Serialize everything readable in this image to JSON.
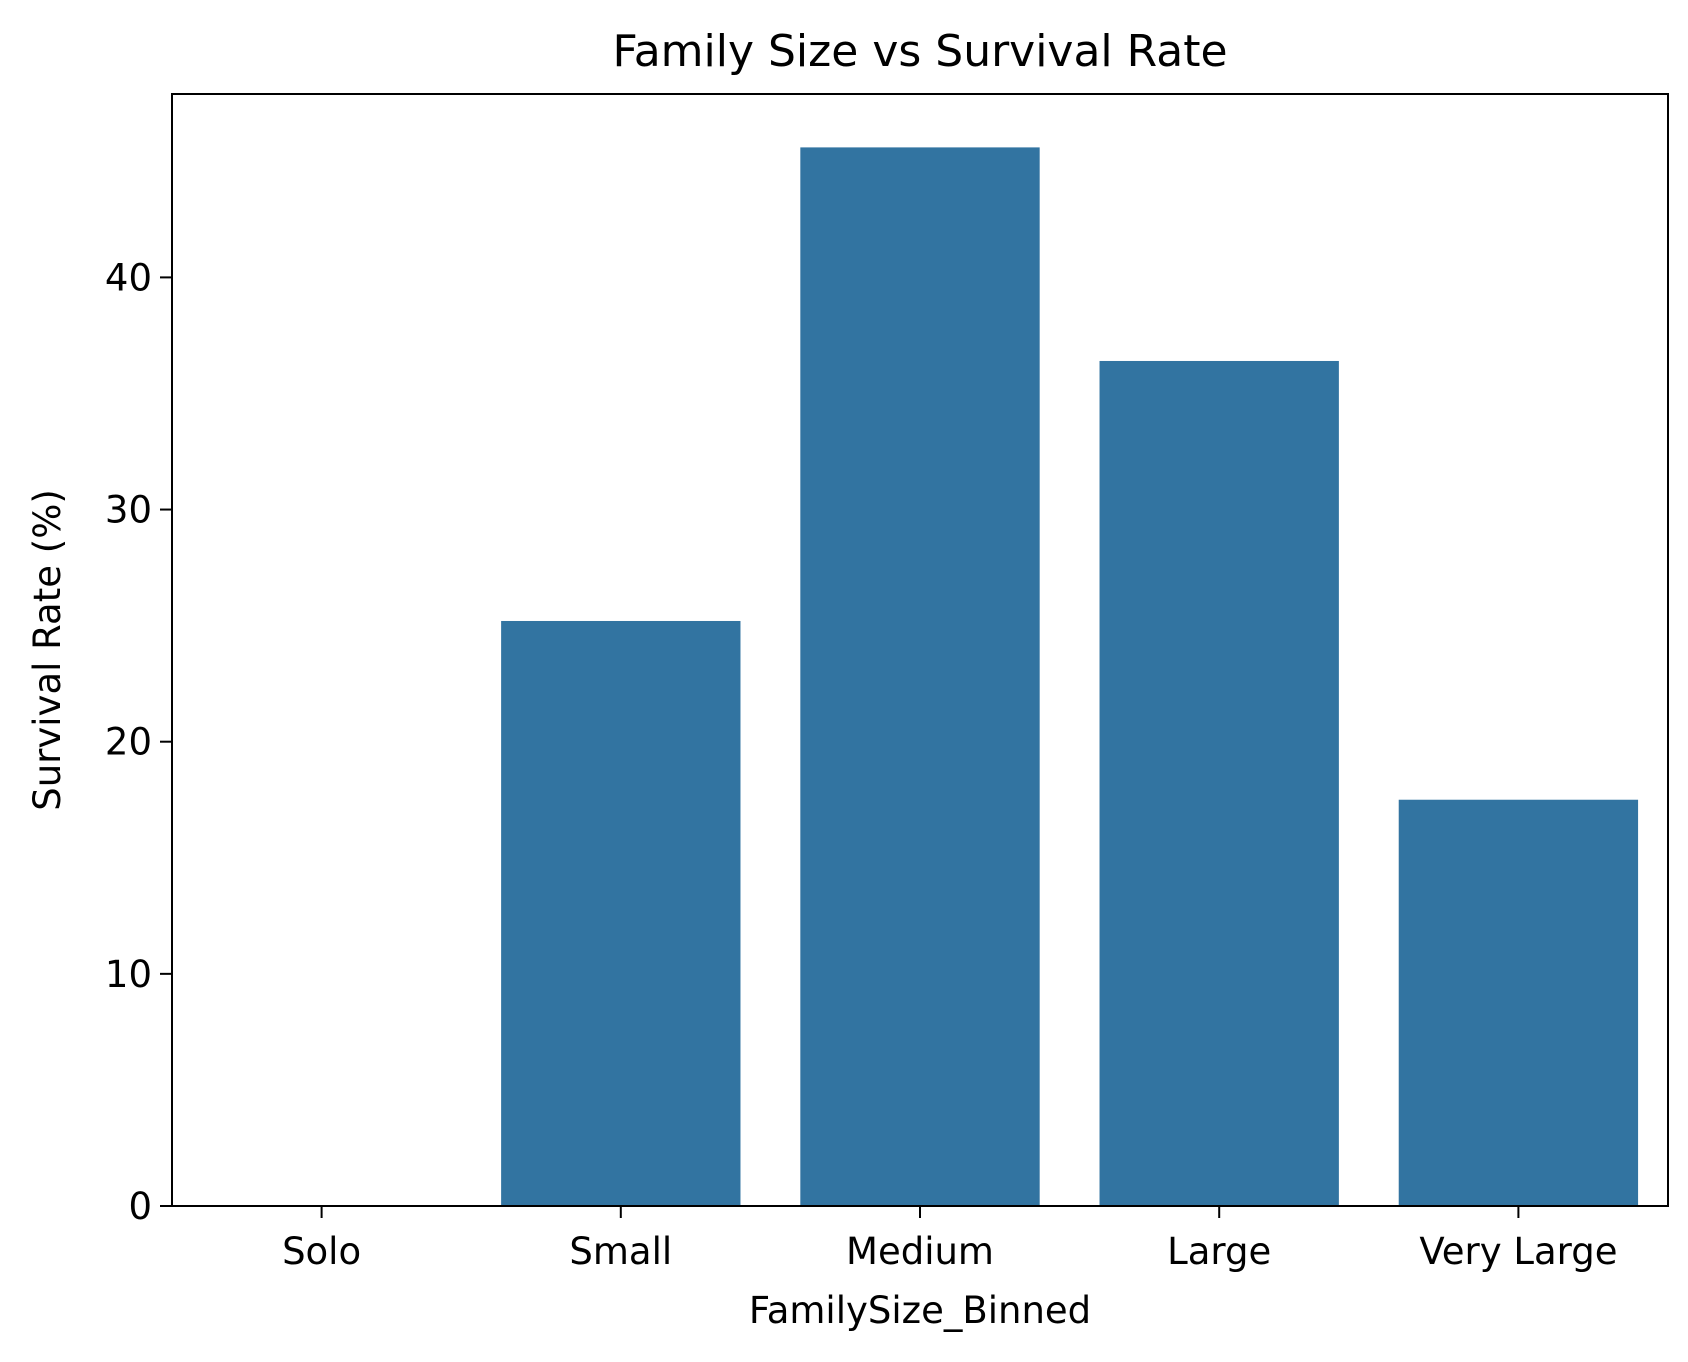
{
  "chart_data": {
    "type": "bar",
    "title": "Family Size vs Survival Rate",
    "xlabel": "FamilySize_Binned",
    "ylabel": "Survival Rate (%)",
    "categories": [
      "Solo",
      "Small",
      "Medium",
      "Large",
      "Very Large"
    ],
    "values": [
      0,
      25.2,
      45.6,
      36.4,
      17.5
    ],
    "ylim": [
      0,
      47.9
    ],
    "yticks": [
      0,
      10,
      20,
      30,
      40
    ],
    "bar_color": "#3274a1",
    "grid": false
  }
}
